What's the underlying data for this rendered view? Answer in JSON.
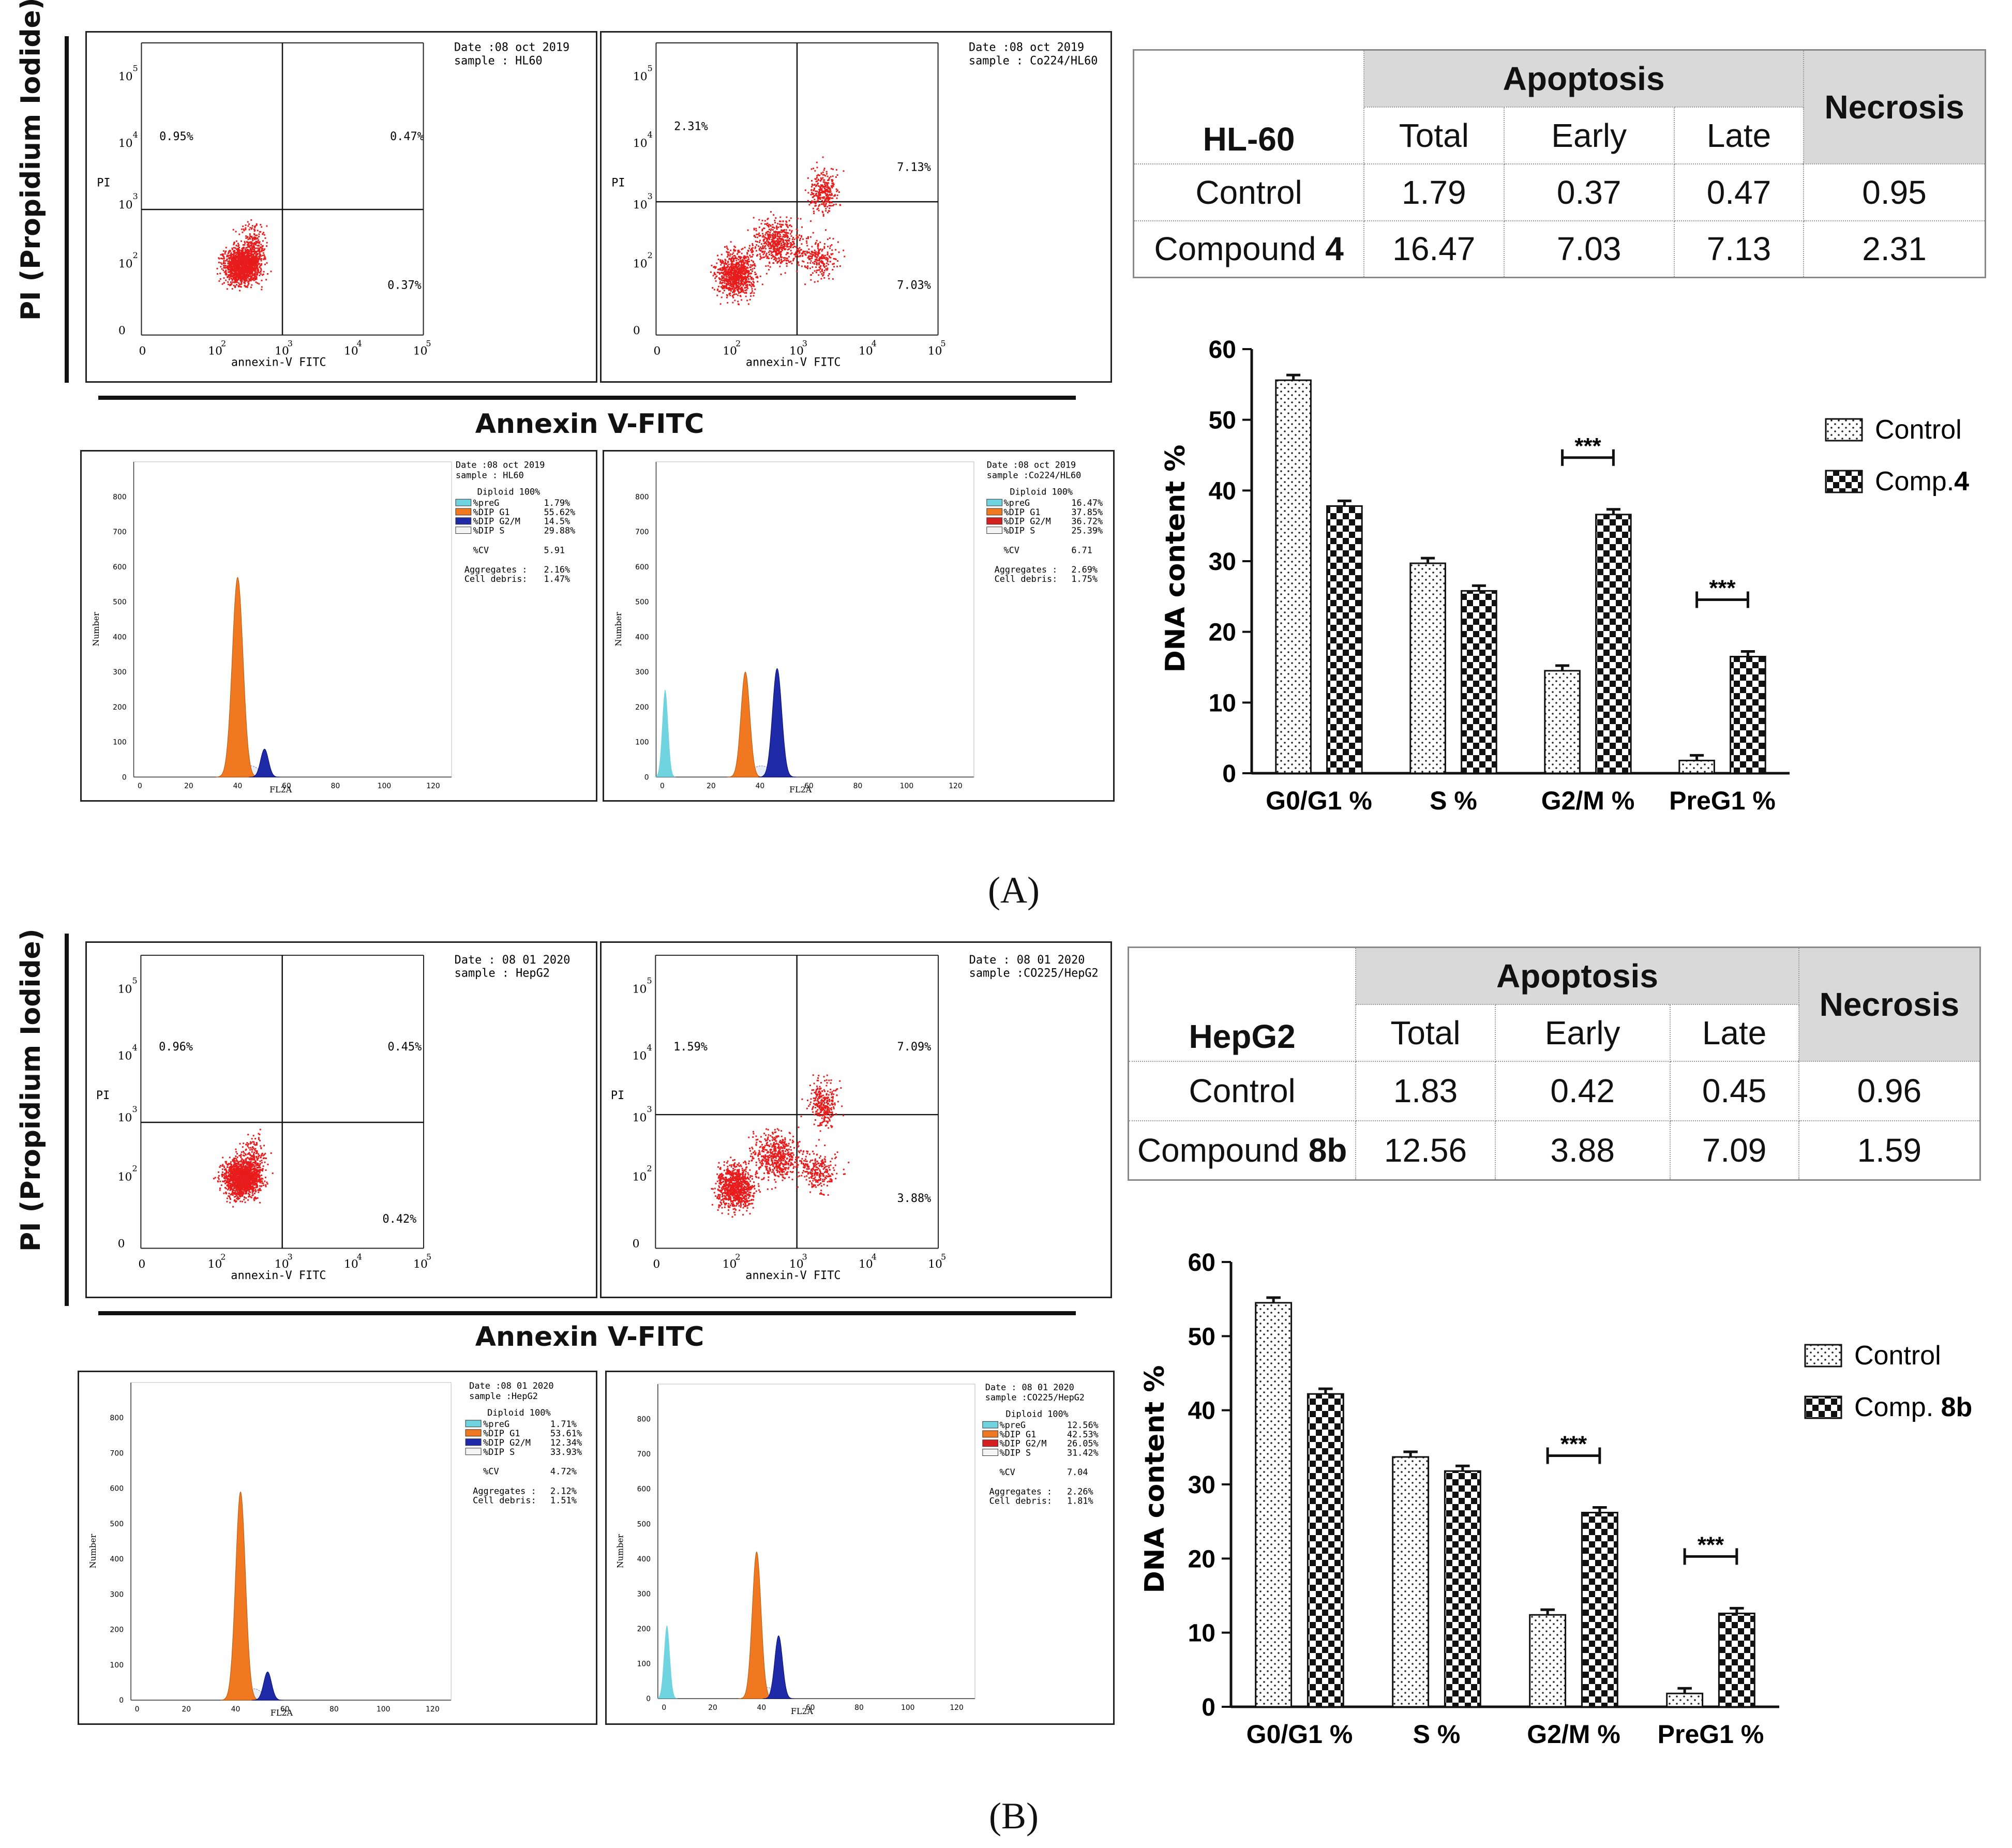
{
  "figure": {
    "y_axis_title": "PI (Propidium Iodide)",
    "x_axis_title": "Annexin V-FITC"
  },
  "panels": [
    {
      "letter": "A",
      "letter_label": "(A)",
      "scatter": [
        {
          "date": "Date :08 oct 2019",
          "sample": "sample : HL60",
          "ylab": "PI",
          "xlab": "annexin-V FITC",
          "q_ul": "0.95%",
          "q_ur": "0.47%",
          "q_lr": "0.37%"
        },
        {
          "date": "Date :08 oct 2019",
          "sample": "sample : Co224/HL60",
          "ylab": "PI",
          "xlab": "annexin-V FITC",
          "q_ul": "2.31%",
          "q_ur": "7.13%",
          "q_lr": "7.03%"
        }
      ],
      "histograms": [
        {
          "date": "Date :08 oct 2019",
          "sample": "sample : HL60",
          "diploid": "Diploid 100%",
          "legend": [
            {
              "name": "%preG",
              "value": "1.79%",
              "color": "#6fd3e0"
            },
            {
              "name": "%DIP G1",
              "value": "55.62%",
              "color": "#f07820"
            },
            {
              "name": "%DIP G2/M",
              "value": "14.5%",
              "color": "#1f2aa8"
            },
            {
              "name": "%DIP S",
              "value": "29.88%",
              "color": "#f4f4f4"
            }
          ],
          "cv": "%CV",
          "cv_value": "5.91",
          "aggregates": "Aggregates :",
          "aggregates_value": "2.16%",
          "debris": "Cell debris:",
          "debris_value": "1.47%",
          "ylab": "Number",
          "xlab": "FL2A"
        },
        {
          "date": "Date :08 oct 2019",
          "sample": "sample :Co224/HL60",
          "diploid": "Diploid 100%",
          "legend": [
            {
              "name": "%preG",
              "value": "16.47%",
              "color": "#6fd3e0"
            },
            {
              "name": "%DIP G1",
              "value": "37.85%",
              "color": "#f07820"
            },
            {
              "name": "%DIP G2/M",
              "value": "36.72%",
              "color": "#d62020"
            },
            {
              "name": "%DIP S",
              "value": "25.39%",
              "color": "#f4f4f4"
            }
          ],
          "cv": "%CV",
          "cv_value": "6.71",
          "aggregates": "Aggregates :",
          "aggregates_value": "2.69%",
          "debris": "Cell debris:",
          "debris_value": "1.75%",
          "ylab": "Number",
          "xlab": "FL2A"
        }
      ],
      "table": {
        "cell_line": "HL-60",
        "apoptosis": "Apoptosis",
        "necrosis": "Necrosis",
        "total": "Total",
        "early": "Early",
        "late": "Late",
        "control_label": "Control",
        "compound_label": "Compound",
        "compound_id": "4",
        "control": [
          "1.79",
          "0.37",
          "0.47",
          "0.95"
        ],
        "compound": [
          "16.47",
          "7.03",
          "7.13",
          "2.31"
        ]
      },
      "legend": {
        "control": "Control",
        "treated": "Comp.",
        "treated_id": "4"
      }
    },
    {
      "letter": "B",
      "letter_label": "(B)",
      "scatter": [
        {
          "date": "Date : 08 01 2020",
          "sample": "sample : HepG2",
          "ylab": "PI",
          "xlab": "annexin-V FITC",
          "q_ul": "0.96%",
          "q_ur": "0.45%",
          "q_lr": "0.42%"
        },
        {
          "date": "Date : 08 01 2020",
          "sample": "sample :CO225/HepG2",
          "ylab": "PI",
          "xlab": "annexin-V FITC",
          "q_ul": "1.59%",
          "q_ur": "7.09%",
          "q_lr": "3.88%"
        }
      ],
      "histograms": [
        {
          "date": "Date :08 01 2020",
          "sample": "sample :HepG2",
          "diploid": "Diploid 100%",
          "legend": [
            {
              "name": "%preG",
              "value": "1.71%",
              "color": "#6fd3e0"
            },
            {
              "name": "%DIP G1",
              "value": "53.61%",
              "color": "#f07820"
            },
            {
              "name": "%DIP G2/M",
              "value": "12.34%",
              "color": "#1f2aa8"
            },
            {
              "name": "%DIP S",
              "value": "33.93%",
              "color": "#f4f4f4"
            }
          ],
          "cv": "%CV",
          "cv_value": "4.72%",
          "aggregates": "Aggregates :",
          "aggregates_value": "2.12%",
          "debris": "Cell debris:",
          "debris_value": "1.51%",
          "ylab": "Number",
          "xlab": "FL2A"
        },
        {
          "date": "Date : 08 01 2020",
          "sample": "sample :CO225/HepG2",
          "diploid": "Diploid 100%",
          "legend": [
            {
              "name": "%preG",
              "value": "12.56%",
              "color": "#6fd3e0"
            },
            {
              "name": "%DIP G1",
              "value": "42.53%",
              "color": "#f07820"
            },
            {
              "name": "%DIP G2/M",
              "value": "26.05%",
              "color": "#d62020"
            },
            {
              "name": "%DIP S",
              "value": "31.42%",
              "color": "#f4f4f4"
            }
          ],
          "cv": "%CV",
          "cv_value": "7.04",
          "aggregates": "Aggregates :",
          "aggregates_value": "2.26%",
          "debris": "Cell debris:",
          "debris_value": "1.81%",
          "ylab": "Number",
          "xlab": "FL2A"
        }
      ],
      "table": {
        "cell_line": "HepG2",
        "apoptosis": "Apoptosis",
        "necrosis": "Necrosis",
        "total": "Total",
        "early": "Early",
        "late": "Late",
        "control_label": "Control",
        "compound_label": "Compound",
        "compound_id": "8b",
        "control": [
          "1.83",
          "0.42",
          "0.45",
          "0.96"
        ],
        "compound": [
          "12.56",
          "3.88",
          "7.09",
          "1.59"
        ]
      },
      "legend": {
        "control": "Control",
        "treated": "Comp.",
        "treated_id": "8b"
      }
    }
  ],
  "chart_data": [
    {
      "type": "bar",
      "title": "",
      "ylabel": "DNA content %",
      "xlabel": "",
      "ylim": [
        0,
        60
      ],
      "yticks": [
        "0",
        "10",
        "20",
        "30",
        "40",
        "50",
        "60"
      ],
      "categories": [
        "G0/G1 %",
        "S %",
        "G2/M %",
        "PreG1 %"
      ],
      "series": [
        {
          "name": "Control",
          "values": [
            55.6,
            29.7,
            14.5,
            1.8
          ]
        },
        {
          "name": "Comp.4",
          "values": [
            37.8,
            25.8,
            36.6,
            16.5
          ]
        }
      ],
      "significance": [
        {
          "category": "G2/M %",
          "label": "***"
        },
        {
          "category": "PreG1 %",
          "label": "***"
        }
      ],
      "legend_position": "right"
    },
    {
      "type": "bar",
      "title": "",
      "ylabel": "DNA content %",
      "xlabel": "",
      "ylim": [
        0,
        60
      ],
      "yticks": [
        "0",
        "10",
        "20",
        "30",
        "40",
        "50",
        "60"
      ],
      "categories": [
        "G0/G1 %",
        "S %",
        "G2/M %",
        "PreG1 %"
      ],
      "series": [
        {
          "name": "Control",
          "values": [
            54.5,
            33.7,
            12.4,
            1.8
          ]
        },
        {
          "name": "Comp. 8b",
          "values": [
            42.2,
            31.8,
            26.2,
            12.6
          ]
        }
      ],
      "significance": [
        {
          "category": "G2/M %",
          "label": "***"
        },
        {
          "category": "PreG1 %",
          "label": "***"
        }
      ],
      "legend_position": "right"
    }
  ]
}
